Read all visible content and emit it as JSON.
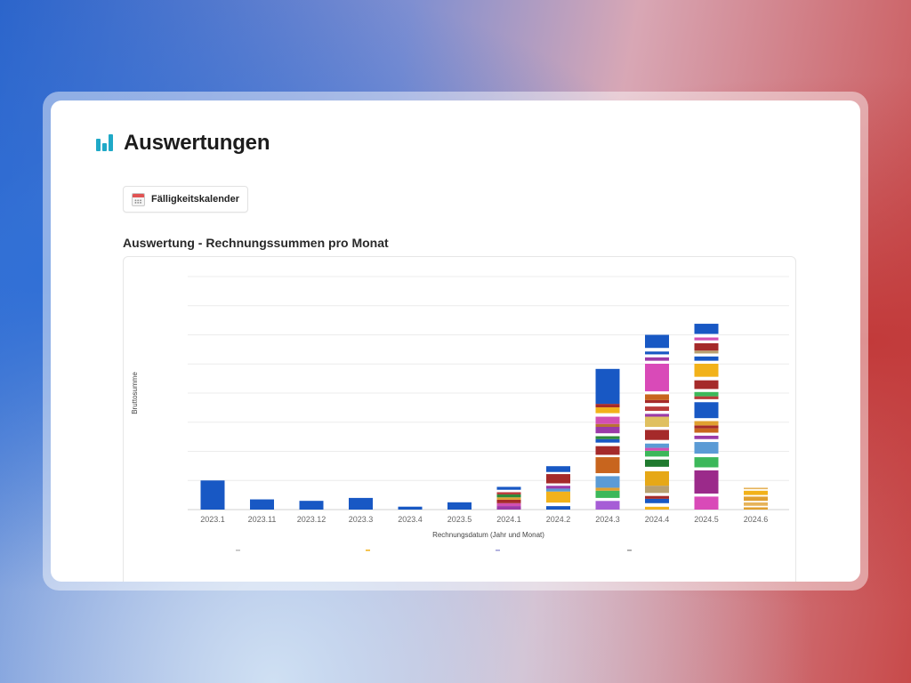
{
  "page": {
    "title": "Auswertungen",
    "title_icon": "bar-chart-icon",
    "accent_color": "#1fa9c7"
  },
  "toolbar": {
    "calendar_button_label": "Fälligkeitskalender",
    "calendar_button_icon": "calendar-icon"
  },
  "report": {
    "section_title": "Auswertung - Rechnungssummen pro Monat"
  },
  "chart_data": {
    "type": "bar",
    "stacked": true,
    "title": "",
    "xlabel": "Rechnungsdatum (Jahr und Monat)",
    "ylabel": "Bruttosumme",
    "grid": true,
    "legend": "bottom",
    "categories": [
      "2023.1",
      "2023.11",
      "2023.12",
      "2023.3",
      "2023.4",
      "2023.5",
      "2024.1",
      "2024.2",
      "2024.3",
      "2024.4",
      "2024.5",
      "2024.6"
    ],
    "ylim": [
      0,
      8
    ],
    "bars": [
      [
        {
          "v": 1.0,
          "c": "#1858c4"
        }
      ],
      [
        {
          "v": 0.35,
          "c": "#1858c4"
        }
      ],
      [
        {
          "v": 0.3,
          "c": "#1858c4"
        }
      ],
      [
        {
          "v": 0.4,
          "c": "#1858c4"
        }
      ],
      [
        {
          "v": 0.1,
          "c": "#1858c4"
        }
      ],
      [
        {
          "v": 0.25,
          "c": "#1858c4"
        }
      ],
      [
        {
          "v": 0.12,
          "c": "#9b3aa8"
        },
        {
          "v": 0.1,
          "c": "#d24fb3"
        },
        {
          "v": 0.12,
          "c": "#a52a2a"
        },
        {
          "v": 0.08,
          "c": "#e0a030"
        },
        {
          "v": 0.1,
          "c": "#2e8b3a"
        },
        {
          "v": 0.08,
          "c": "#b83a3a"
        },
        {
          "v": 0.08,
          "c": "#ffffff"
        },
        {
          "v": 0.1,
          "c": "#1858c4"
        }
      ],
      [
        {
          "v": 0.12,
          "c": "#1858c4"
        },
        {
          "v": 0.12,
          "c": "#ffffff"
        },
        {
          "v": 0.38,
          "c": "#f2b21a"
        },
        {
          "v": 0.1,
          "c": "#5b9bd5"
        },
        {
          "v": 0.1,
          "c": "#9b3aa8"
        },
        {
          "v": 0.08,
          "c": "#ffffff"
        },
        {
          "v": 0.32,
          "c": "#a52a2a"
        },
        {
          "v": 0.07,
          "c": "#ffffff"
        },
        {
          "v": 0.2,
          "c": "#1858c4"
        }
      ],
      [
        {
          "v": 0.3,
          "c": "#a65dd6"
        },
        {
          "v": 0.1,
          "c": "#ffffff"
        },
        {
          "v": 0.25,
          "c": "#3cb85a"
        },
        {
          "v": 0.1,
          "c": "#e0a030"
        },
        {
          "v": 0.4,
          "c": "#5b9bd5"
        },
        {
          "v": 0.1,
          "c": "#ffffff"
        },
        {
          "v": 0.55,
          "c": "#c8651e"
        },
        {
          "v": 0.08,
          "c": "#ffffff"
        },
        {
          "v": 0.3,
          "c": "#a52a2a"
        },
        {
          "v": 0.12,
          "c": "#ffffff"
        },
        {
          "v": 0.12,
          "c": "#1858c4"
        },
        {
          "v": 0.1,
          "c": "#2e8b3a"
        },
        {
          "v": 0.1,
          "c": "#ffffff"
        },
        {
          "v": 0.22,
          "c": "#9b3aa8"
        },
        {
          "v": 0.1,
          "c": "#b87333"
        },
        {
          "v": 0.25,
          "c": "#d24fb3"
        },
        {
          "v": 0.12,
          "c": "#ffffff"
        },
        {
          "v": 0.2,
          "c": "#f2b21a"
        },
        {
          "v": 0.12,
          "c": "#a52a2a"
        },
        {
          "v": 1.2,
          "c": "#1858c4"
        }
      ],
      [
        {
          "v": 0.1,
          "c": "#f2b21a"
        },
        {
          "v": 0.12,
          "c": "#ffffff"
        },
        {
          "v": 0.15,
          "c": "#1858c4"
        },
        {
          "v": 0.1,
          "c": "#a52a2a"
        },
        {
          "v": 0.1,
          "c": "#ffffff"
        },
        {
          "v": 0.25,
          "c": "#b8a070"
        },
        {
          "v": 0.5,
          "c": "#e6a817"
        },
        {
          "v": 0.15,
          "c": "#ffffff"
        },
        {
          "v": 0.25,
          "c": "#1f7a2e"
        },
        {
          "v": 0.1,
          "c": "#ffffff"
        },
        {
          "v": 0.2,
          "c": "#3cb85a"
        },
        {
          "v": 0.1,
          "c": "#d24fb3"
        },
        {
          "v": 0.15,
          "c": "#5b9bd5"
        },
        {
          "v": 0.12,
          "c": "#ffffff"
        },
        {
          "v": 0.35,
          "c": "#a52a2a"
        },
        {
          "v": 0.1,
          "c": "#ffffff"
        },
        {
          "v": 0.35,
          "c": "#e0c060"
        },
        {
          "v": 0.1,
          "c": "#9b3aa8"
        },
        {
          "v": 0.1,
          "c": "#ffffff"
        },
        {
          "v": 0.15,
          "c": "#b83a3a"
        },
        {
          "v": 0.12,
          "c": "#ffffff"
        },
        {
          "v": 0.1,
          "c": "#a52a2a"
        },
        {
          "v": 0.2,
          "c": "#c8651e"
        },
        {
          "v": 0.1,
          "c": "#ffffff"
        },
        {
          "v": 0.95,
          "c": "#d94ab8"
        },
        {
          "v": 0.1,
          "c": "#ffffff"
        },
        {
          "v": 0.12,
          "c": "#9b3aa8"
        },
        {
          "v": 0.1,
          "c": "#ffffff"
        },
        {
          "v": 0.1,
          "c": "#1858c4"
        },
        {
          "v": 0.12,
          "c": "#ffffff"
        },
        {
          "v": 0.45,
          "c": "#1858c4"
        }
      ],
      [
        {
          "v": 0.45,
          "c": "#d94ab8"
        },
        {
          "v": 0.1,
          "c": "#ffffff"
        },
        {
          "v": 0.8,
          "c": "#9b2a8a"
        },
        {
          "v": 0.1,
          "c": "#ffffff"
        },
        {
          "v": 0.35,
          "c": "#3cb85a"
        },
        {
          "v": 0.12,
          "c": "#ffffff"
        },
        {
          "v": 0.4,
          "c": "#5b9bd5"
        },
        {
          "v": 0.1,
          "c": "#ffffff"
        },
        {
          "v": 0.12,
          "c": "#9b3aa8"
        },
        {
          "v": 0.1,
          "c": "#ffffff"
        },
        {
          "v": 0.15,
          "c": "#c8651e"
        },
        {
          "v": 0.1,
          "c": "#a52a2a"
        },
        {
          "v": 0.15,
          "c": "#e0a030"
        },
        {
          "v": 0.1,
          "c": "#ffffff"
        },
        {
          "v": 0.55,
          "c": "#1858c4"
        },
        {
          "v": 0.1,
          "c": "#ffffff"
        },
        {
          "v": 0.1,
          "c": "#b83a3a"
        },
        {
          "v": 0.15,
          "c": "#3cb85a"
        },
        {
          "v": 0.1,
          "c": "#ffffff"
        },
        {
          "v": 0.3,
          "c": "#a52a2a"
        },
        {
          "v": 0.12,
          "c": "#ffffff"
        },
        {
          "v": 0.45,
          "c": "#f2b21a"
        },
        {
          "v": 0.1,
          "c": "#ffffff"
        },
        {
          "v": 0.15,
          "c": "#1858c4"
        },
        {
          "v": 0.1,
          "c": "#ffffff"
        },
        {
          "v": 0.1,
          "c": "#b8a070"
        },
        {
          "v": 0.25,
          "c": "#a52a2a"
        },
        {
          "v": 0.1,
          "c": "#ffffff"
        },
        {
          "v": 0.1,
          "c": "#d24fb3"
        },
        {
          "v": 0.12,
          "c": "#ffffff"
        },
        {
          "v": 0.35,
          "c": "#1858c4"
        }
      ],
      [
        {
          "v": 0.08,
          "c": "#e0a030"
        },
        {
          "v": 0.05,
          "c": "#ffffff"
        },
        {
          "v": 0.12,
          "c": "#e6b35a"
        },
        {
          "v": 0.05,
          "c": "#ffffff"
        },
        {
          "v": 0.15,
          "c": "#e0a030"
        },
        {
          "v": 0.05,
          "c": "#ffffff"
        },
        {
          "v": 0.15,
          "c": "#f2b21a"
        },
        {
          "v": 0.05,
          "c": "#ffffff"
        },
        {
          "v": 0.05,
          "c": "#e6b35a"
        }
      ]
    ]
  }
}
